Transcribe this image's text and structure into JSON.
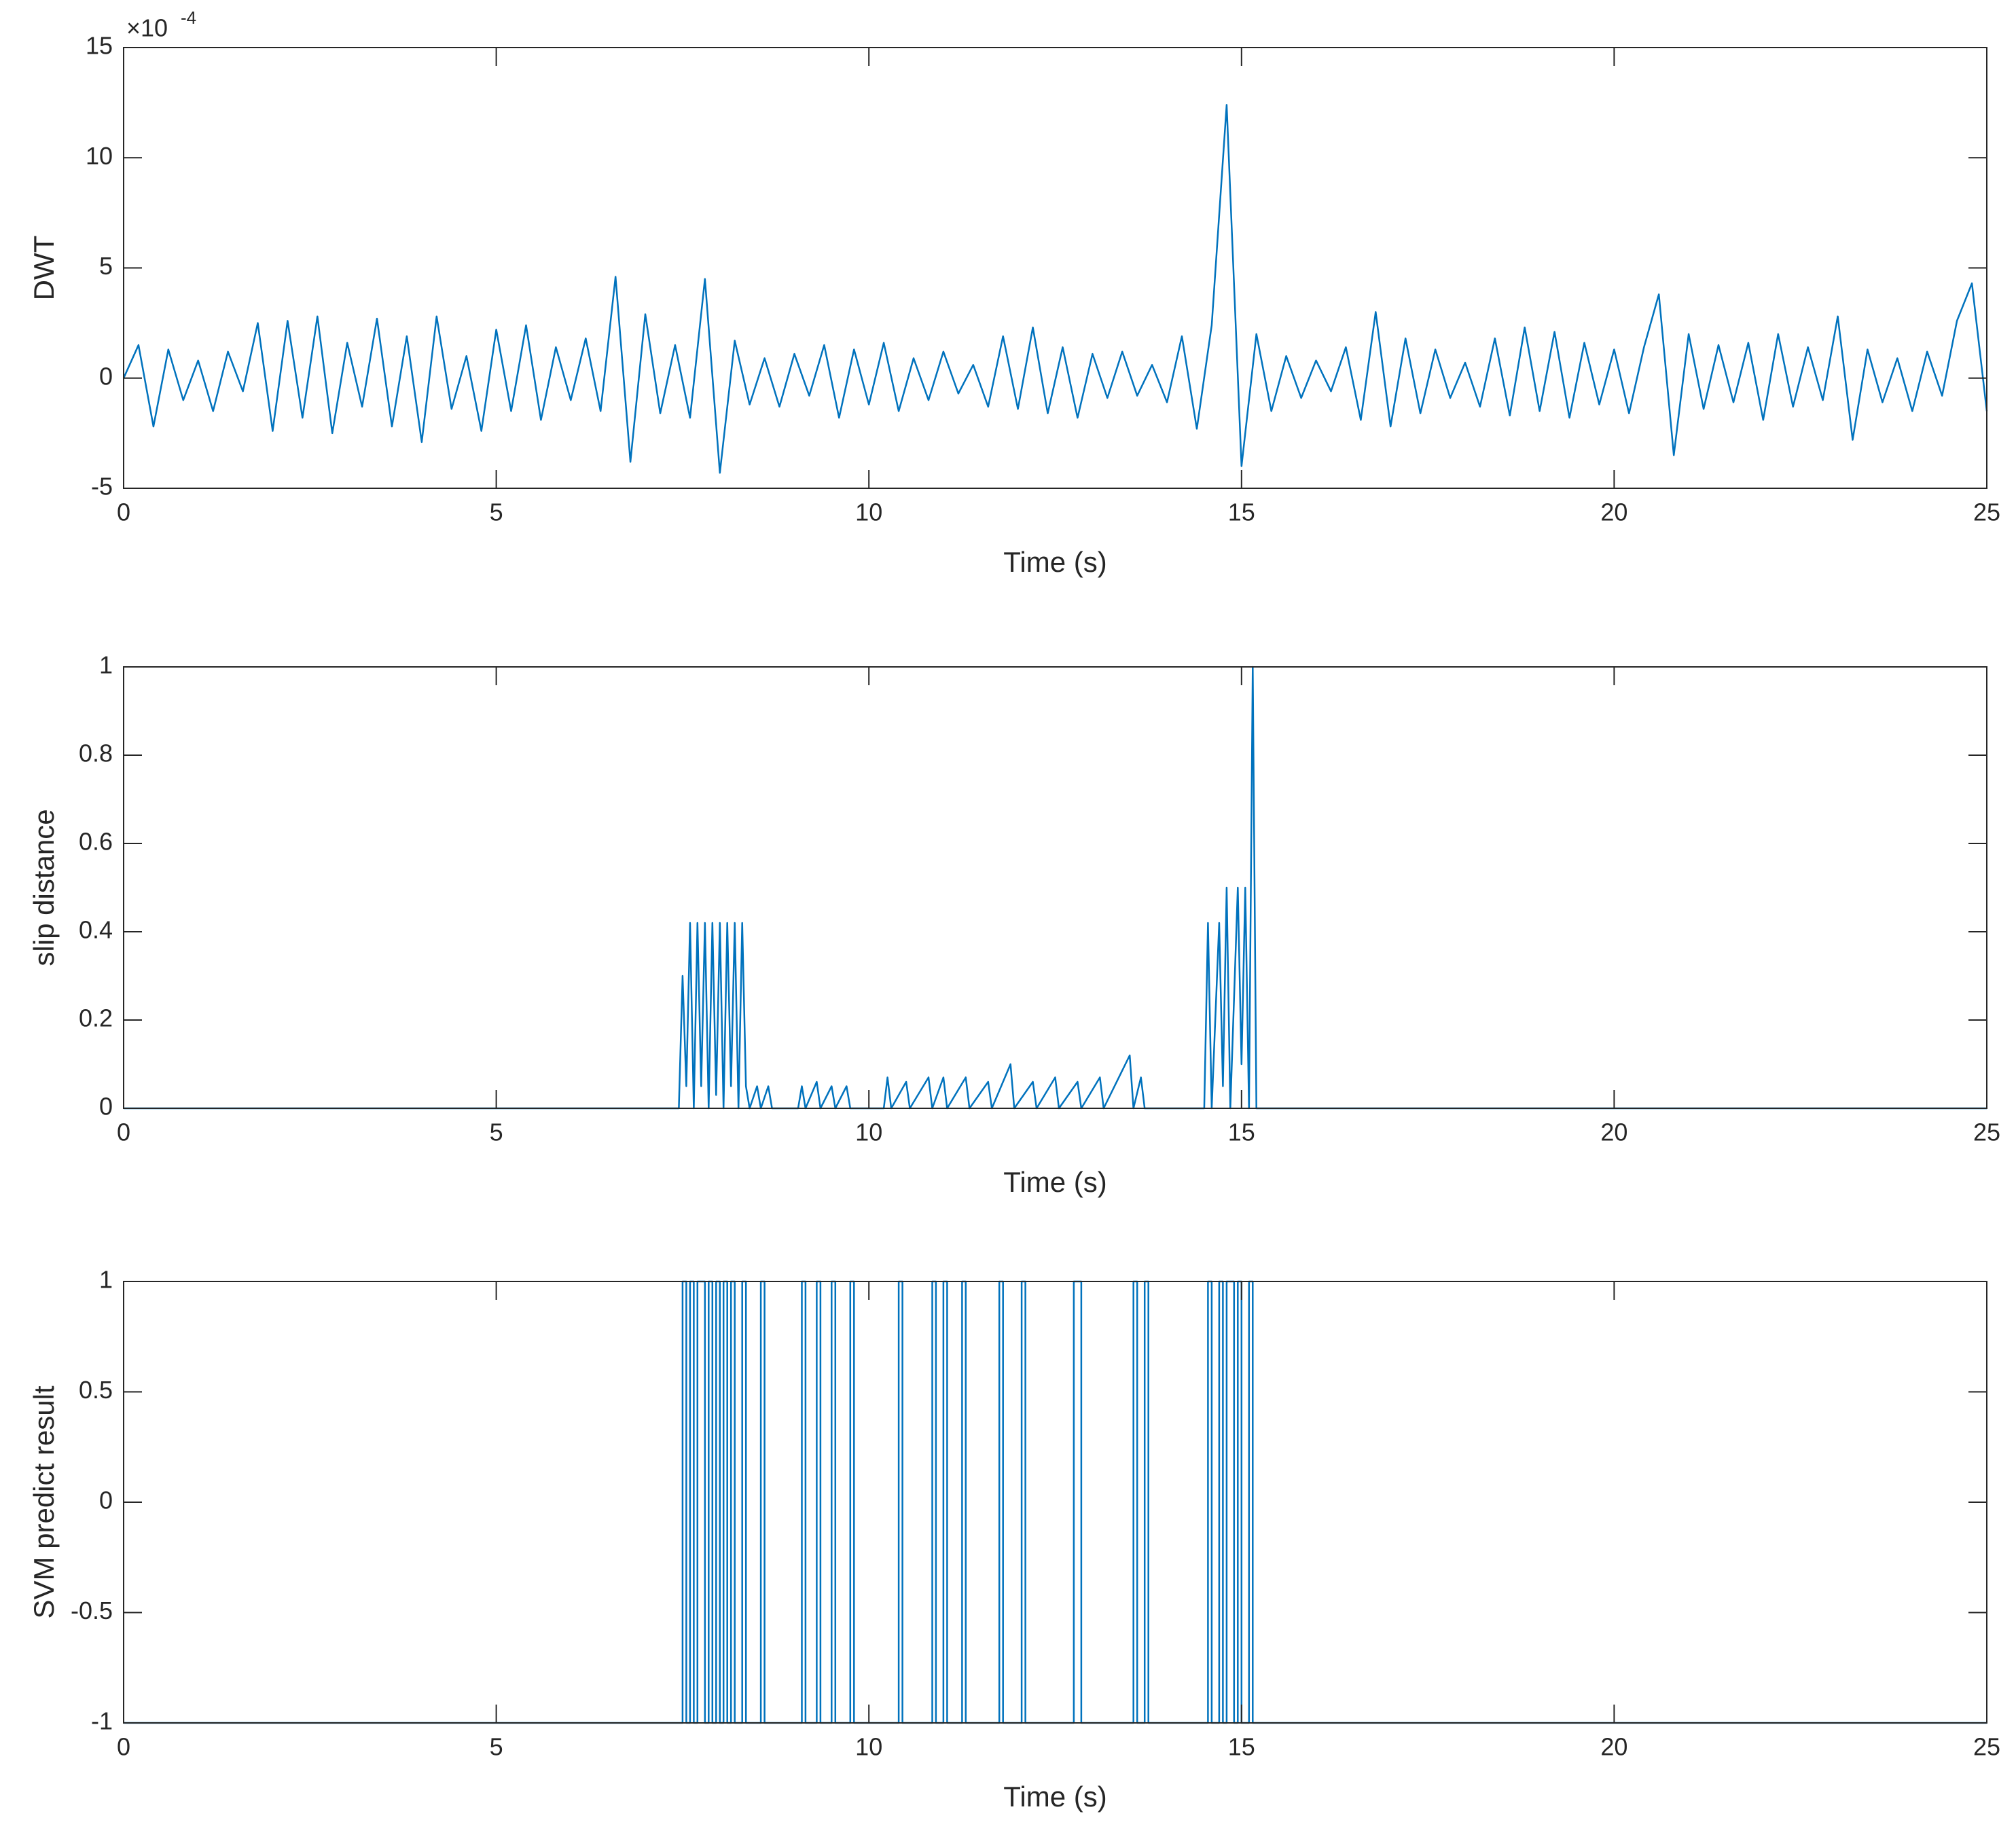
{
  "chart_data": [
    {
      "type": "line",
      "ylabel": "DWT",
      "xlabel": "Time (s)",
      "y_multiplier": {
        "base": "×10",
        "exponent": "-4"
      },
      "color": "#0072bd",
      "xlim": [
        0,
        25
      ],
      "xticks": [
        0,
        5,
        10,
        15,
        20,
        25
      ],
      "ylim": [
        -5,
        15
      ],
      "yticks": [
        -5,
        0,
        5,
        10,
        15
      ],
      "x": [
        0,
        0.2,
        0.4,
        0.6,
        0.8,
        1,
        1.2,
        1.4,
        1.6,
        1.8,
        2,
        2.2,
        2.4,
        2.6,
        2.8,
        3,
        3.2,
        3.4,
        3.6,
        3.8,
        4,
        4.2,
        4.4,
        4.6,
        4.8,
        5,
        5.2,
        5.4,
        5.6,
        5.8,
        6,
        6.2,
        6.4,
        6.6,
        6.8,
        7,
        7.2,
        7.4,
        7.6,
        7.8,
        8,
        8.2,
        8.4,
        8.6,
        8.8,
        9,
        9.2,
        9.4,
        9.6,
        9.8,
        10,
        10.2,
        10.4,
        10.6,
        10.8,
        11,
        11.2,
        11.4,
        11.6,
        11.8,
        12,
        12.2,
        12.4,
        12.6,
        12.8,
        13,
        13.2,
        13.4,
        13.6,
        13.8,
        14,
        14.2,
        14.4,
        14.6,
        14.8,
        15,
        15.2,
        15.4,
        15.6,
        15.8,
        16,
        16.2,
        16.4,
        16.6,
        16.8,
        17,
        17.2,
        17.4,
        17.6,
        17.8,
        18,
        18.2,
        18.4,
        18.6,
        18.8,
        19,
        19.2,
        19.4,
        19.6,
        19.8,
        20,
        20.2,
        20.4,
        20.6,
        20.8,
        21,
        21.2,
        21.4,
        21.6,
        21.8,
        22,
        22.2,
        22.4,
        22.6,
        22.8,
        23,
        23.2,
        23.4,
        23.6,
        23.8,
        24,
        24.2,
        24.4,
        24.6,
        24.8,
        25
      ],
      "values": [
        0,
        1.5,
        -2.2,
        1.3,
        -1.0,
        0.8,
        -1.5,
        1.2,
        -0.6,
        2.5,
        -2.4,
        2.6,
        -1.8,
        2.8,
        -2.5,
        1.6,
        -1.3,
        2.7,
        -2.2,
        1.9,
        -2.9,
        2.8,
        -1.4,
        1.0,
        -2.4,
        2.2,
        -1.5,
        2.4,
        -1.9,
        1.4,
        -1.0,
        1.8,
        -1.5,
        4.6,
        -3.8,
        2.9,
        -1.6,
        1.5,
        -1.8,
        4.5,
        -4.3,
        1.7,
        -1.2,
        0.9,
        -1.3,
        1.1,
        -0.8,
        1.5,
        -1.8,
        1.3,
        -1.2,
        1.6,
        -1.5,
        0.9,
        -1.0,
        1.2,
        -0.7,
        0.6,
        -1.3,
        1.9,
        -1.4,
        2.3,
        -1.6,
        1.4,
        -1.8,
        1.1,
        -0.9,
        1.2,
        -0.8,
        0.6,
        -1.1,
        1.9,
        -2.3,
        2.4,
        12.4,
        -4.0,
        2.0,
        -1.5,
        1.0,
        -0.9,
        0.8,
        -0.6,
        1.4,
        -1.9,
        3.0,
        -2.2,
        1.8,
        -1.6,
        1.3,
        -0.9,
        0.7,
        -1.3,
        1.8,
        -1.7,
        2.3,
        -1.5,
        2.1,
        -1.8,
        1.6,
        -1.2,
        1.3,
        -1.6,
        1.4,
        3.8,
        -3.5,
        2.0,
        -1.4,
        1.5,
        -1.1,
        1.6,
        -1.9,
        2.0,
        -1.3,
        1.4,
        -1.0,
        2.8,
        -2.8,
        1.3,
        -1.1,
        0.9,
        -1.5,
        1.2,
        -0.8,
        2.6,
        4.3,
        -1.5
      ]
    },
    {
      "type": "line",
      "ylabel": "slip distance",
      "xlabel": "Time (s)",
      "color": "#0072bd",
      "xlim": [
        0,
        25
      ],
      "xticks": [
        0,
        5,
        10,
        15,
        20,
        25
      ],
      "ylim": [
        0,
        1
      ],
      "yticks": [
        0,
        0.2,
        0.4,
        0.6,
        0.8,
        1
      ],
      "x": [
        0,
        7.45,
        7.5,
        7.55,
        7.6,
        7.65,
        7.7,
        7.75,
        7.8,
        7.85,
        7.9,
        7.95,
        8.0,
        8.05,
        8.1,
        8.15,
        8.2,
        8.25,
        8.3,
        8.35,
        8.4,
        8.5,
        8.55,
        8.65,
        8.7,
        9.05,
        9.1,
        9.15,
        9.3,
        9.35,
        9.5,
        9.55,
        9.7,
        9.75,
        10.2,
        10.25,
        10.3,
        10.5,
        10.55,
        10.8,
        10.85,
        11.0,
        11.05,
        11.3,
        11.35,
        11.6,
        11.65,
        11.9,
        11.95,
        12.2,
        12.25,
        12.5,
        12.55,
        12.8,
        12.85,
        13.1,
        13.15,
        13.5,
        13.55,
        13.65,
        13.7,
        14.5,
        14.55,
        14.6,
        14.7,
        14.75,
        14.8,
        14.85,
        14.95,
        15.0,
        15.05,
        15.1,
        15.15,
        15.2,
        25
      ],
      "values": [
        0,
        0,
        0.3,
        0.05,
        0.42,
        0,
        0.42,
        0.05,
        0.42,
        0,
        0.42,
        0.03,
        0.42,
        0,
        0.42,
        0.05,
        0.42,
        0,
        0.42,
        0.05,
        0,
        0.05,
        0,
        0.05,
        0,
        0,
        0.05,
        0,
        0.06,
        0,
        0.05,
        0,
        0.05,
        0,
        0,
        0.07,
        0,
        0.06,
        0,
        0.07,
        0,
        0.07,
        0,
        0.07,
        0,
        0.06,
        0,
        0.1,
        0,
        0.06,
        0,
        0.07,
        0,
        0.06,
        0,
        0.07,
        0,
        0.12,
        0,
        0.07,
        0,
        0,
        0.42,
        0,
        0.42,
        0.05,
        0.5,
        0,
        0.5,
        0.1,
        0.5,
        0,
        1,
        0,
        0
      ]
    },
    {
      "type": "line",
      "ylabel": "SVM predict result",
      "xlabel": "Time (s)",
      "color": "#0072bd",
      "xlim": [
        0,
        25
      ],
      "xticks": [
        0,
        5,
        10,
        15,
        20,
        25
      ],
      "ylim": [
        -1,
        1
      ],
      "yticks": [
        -1,
        -0.5,
        0,
        0.5,
        1
      ],
      "x": [
        0,
        7.5,
        7.5,
        7.55,
        7.55,
        7.6,
        7.6,
        7.65,
        7.65,
        7.7,
        7.7,
        7.8,
        7.8,
        7.85,
        7.85,
        7.9,
        7.9,
        7.95,
        7.95,
        8.0,
        8.0,
        8.05,
        8.05,
        8.1,
        8.1,
        8.15,
        8.15,
        8.2,
        8.2,
        8.3,
        8.3,
        8.35,
        8.35,
        8.55,
        8.55,
        8.6,
        8.6,
        9.1,
        9.1,
        9.15,
        9.15,
        9.3,
        9.3,
        9.35,
        9.35,
        9.5,
        9.5,
        9.55,
        9.55,
        9.75,
        9.75,
        9.8,
        9.8,
        10.4,
        10.4,
        10.45,
        10.45,
        10.85,
        10.85,
        10.9,
        10.9,
        11.0,
        11.0,
        11.05,
        11.05,
        11.25,
        11.25,
        11.3,
        11.3,
        11.75,
        11.75,
        11.8,
        11.8,
        12.05,
        12.05,
        12.1,
        12.1,
        12.75,
        12.75,
        12.85,
        12.85,
        13.55,
        13.55,
        13.6,
        13.6,
        13.7,
        13.7,
        13.75,
        13.75,
        14.55,
        14.55,
        14.6,
        14.6,
        14.7,
        14.7,
        14.75,
        14.75,
        14.8,
        14.8,
        14.9,
        14.9,
        14.95,
        14.95,
        15.0,
        15.0,
        15.1,
        15.1,
        15.15,
        15.15,
        25
      ],
      "values": [
        -1,
        -1,
        1,
        1,
        -1,
        -1,
        1,
        1,
        -1,
        -1,
        1,
        1,
        -1,
        -1,
        1,
        1,
        -1,
        -1,
        1,
        1,
        -1,
        -1,
        1,
        1,
        -1,
        -1,
        1,
        1,
        -1,
        -1,
        1,
        1,
        -1,
        -1,
        1,
        1,
        -1,
        -1,
        1,
        1,
        -1,
        -1,
        1,
        1,
        -1,
        -1,
        1,
        1,
        -1,
        -1,
        1,
        1,
        -1,
        -1,
        1,
        1,
        -1,
        -1,
        1,
        1,
        -1,
        -1,
        1,
        1,
        -1,
        -1,
        1,
        1,
        -1,
        -1,
        1,
        1,
        -1,
        -1,
        1,
        1,
        -1,
        -1,
        1,
        1,
        -1,
        -1,
        1,
        1,
        -1,
        -1,
        1,
        1,
        -1,
        -1,
        1,
        1,
        -1,
        -1,
        1,
        1,
        -1,
        -1,
        1,
        1,
        -1,
        -1,
        1,
        1,
        -1,
        -1,
        1,
        1,
        -1,
        -1
      ]
    }
  ]
}
